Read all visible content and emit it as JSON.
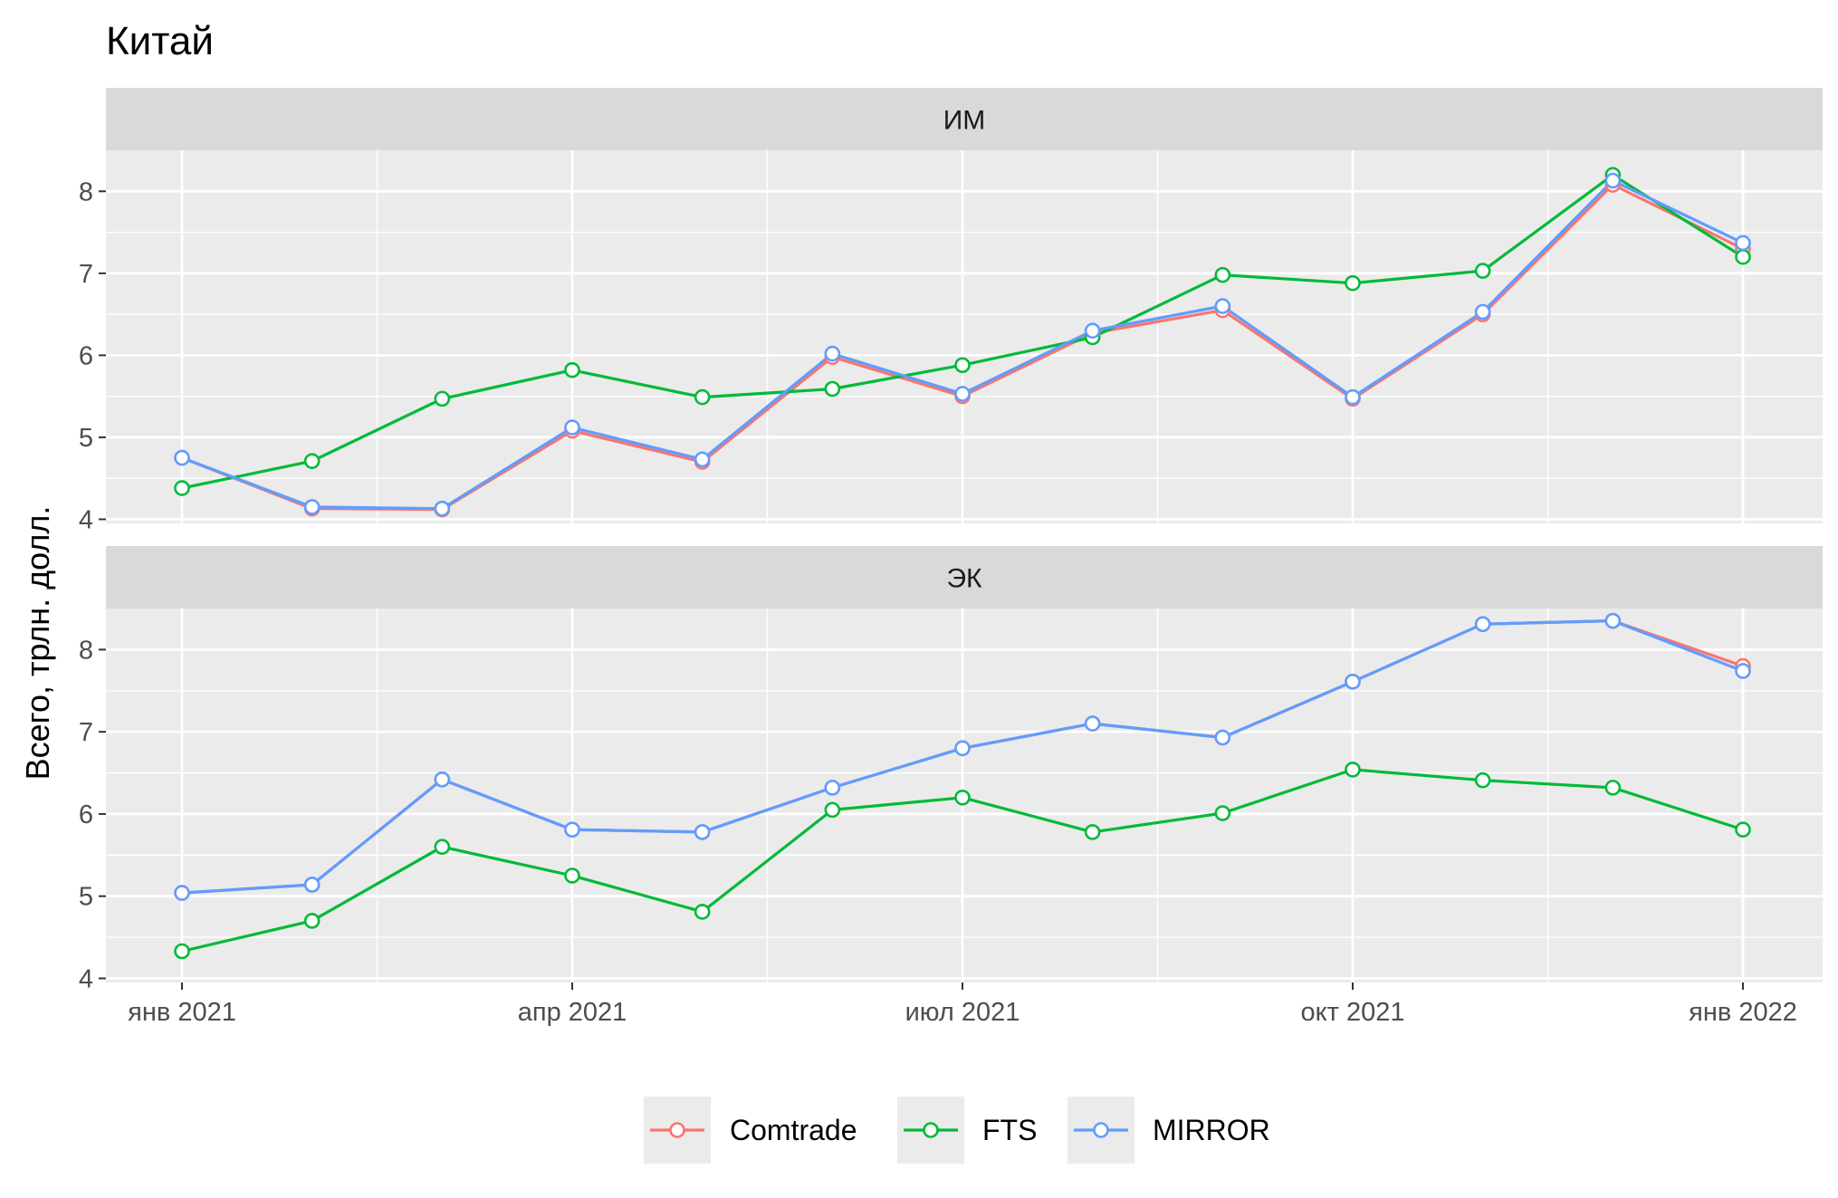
{
  "chart_data": {
    "type": "line",
    "title": "Китай",
    "ylabel": "Всего, трлн. долл.",
    "xlabel": "",
    "x_ticks": [
      "янв 2021",
      "апр 2021",
      "июл 2021",
      "окт 2021",
      "янв 2022"
    ],
    "x": [
      "2021-01",
      "2021-02",
      "2021-03",
      "2021-04",
      "2021-05",
      "2021-06",
      "2021-07",
      "2021-08",
      "2021-09",
      "2021-10",
      "2021-11",
      "2021-12",
      "2022-01"
    ],
    "ylim": [
      3.95,
      8.5
    ],
    "y_ticks": [
      4,
      5,
      6,
      7,
      8
    ],
    "grid": true,
    "legend": {
      "position": "bottom",
      "entries": [
        "Comtrade",
        "FTS",
        "MIRROR"
      ]
    },
    "colors": {
      "Comtrade": "#F8766D",
      "FTS": "#00BA38",
      "MIRROR": "#619CFF"
    },
    "panels": [
      {
        "label": "ИМ",
        "series": [
          {
            "name": "Comtrade",
            "values": [
              4.75,
              4.13,
              4.12,
              5.08,
              4.7,
              5.98,
              5.5,
              6.27,
              6.55,
              5.47,
              6.5,
              8.08,
              7.3
            ]
          },
          {
            "name": "FTS",
            "values": [
              4.38,
              4.71,
              5.47,
              5.82,
              5.49,
              5.59,
              5.88,
              6.22,
              6.98,
              6.88,
              7.03,
              8.2,
              7.2
            ]
          },
          {
            "name": "MIRROR",
            "values": [
              4.75,
              4.15,
              4.13,
              5.12,
              4.73,
              6.02,
              5.53,
              6.3,
              6.6,
              5.49,
              6.53,
              8.13,
              7.37
            ]
          }
        ]
      },
      {
        "label": "ЭК",
        "series": [
          {
            "name": "Comtrade",
            "values": [
              5.04,
              5.14,
              6.42,
              5.81,
              5.78,
              6.32,
              6.8,
              7.1,
              6.93,
              7.61,
              8.31,
              8.35,
              7.8
            ]
          },
          {
            "name": "FTS",
            "values": [
              4.33,
              4.7,
              5.6,
              5.25,
              4.81,
              6.05,
              6.2,
              5.78,
              6.01,
              6.54,
              6.41,
              6.32,
              5.81
            ]
          },
          {
            "name": "MIRROR",
            "values": [
              5.04,
              5.14,
              6.42,
              5.81,
              5.78,
              6.32,
              6.8,
              7.1,
              6.93,
              7.61,
              8.31,
              8.35,
              7.74
            ]
          }
        ]
      }
    ]
  }
}
